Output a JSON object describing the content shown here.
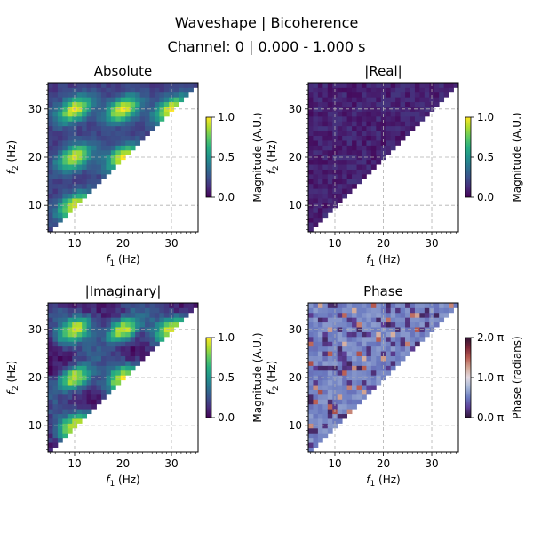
{
  "figure": {
    "suptitle_line1": "Waveshape | Bicoherence",
    "suptitle_line2": "Channel: 0 | 0.000 - 1.000 s"
  },
  "chart_data": [
    {
      "type": "heatmap",
      "title": "Absolute",
      "xlabel_var": "f",
      "xlabel_sub": "1",
      "xlabel_unit": " (Hz)",
      "ylabel_var": "f",
      "ylabel_sub": "2",
      "ylabel_unit": " (Hz)",
      "xlim": [
        4.5,
        35.5
      ],
      "ylim": [
        4.5,
        35.5
      ],
      "xticks": [
        10,
        20,
        30
      ],
      "yticks": [
        10,
        20,
        30
      ],
      "grid": true,
      "mask": "f2 >= f1",
      "pattern": "periodic blobs of high bicoherence near (10,10),(10,20),(20,20),(10,30),(20,30),(30,30)",
      "colormap": "viridis",
      "clim": [
        0,
        1
      ],
      "colorbar_ticks": [
        "0.0",
        "0.5",
        "1.0"
      ],
      "colorbar_label": "Magnitude (A.U.)"
    },
    {
      "type": "heatmap",
      "title": "|Real|",
      "xlabel_var": "f",
      "xlabel_sub": "1",
      "xlabel_unit": " (Hz)",
      "ylabel_var": "f",
      "ylabel_sub": "2",
      "ylabel_unit": " (Hz)",
      "xlim": [
        4.5,
        35.5
      ],
      "ylim": [
        4.5,
        35.5
      ],
      "xticks": [
        10,
        20,
        30
      ],
      "yticks": [
        10,
        20,
        30
      ],
      "grid": true,
      "mask": "f2 >= f1",
      "pattern": "near-zero values throughout",
      "colormap": "viridis",
      "clim": [
        0,
        1
      ],
      "colorbar_ticks": [
        "0.0",
        "0.5",
        "1.0"
      ],
      "colorbar_label": "Magnitude (A.U.)"
    },
    {
      "type": "heatmap",
      "title": "|Imaginary|",
      "xlabel_var": "f",
      "xlabel_sub": "1",
      "xlabel_unit": " (Hz)",
      "ylabel_var": "f",
      "ylabel_sub": "2",
      "ylabel_unit": " (Hz)",
      "xlim": [
        4.5,
        35.5
      ],
      "ylim": [
        4.5,
        35.5
      ],
      "xticks": [
        10,
        20,
        30
      ],
      "yticks": [
        10,
        20,
        30
      ],
      "grid": true,
      "mask": "f2 >= f1",
      "pattern": "same blobs as Absolute with darker gaps",
      "colormap": "viridis",
      "clim": [
        0,
        1
      ],
      "colorbar_ticks": [
        "0.0",
        "0.5",
        "1.0"
      ],
      "colorbar_label": "Magnitude (A.U.)"
    },
    {
      "type": "heatmap",
      "title": "Phase",
      "xlabel_var": "f",
      "xlabel_sub": "1",
      "xlabel_unit": " (Hz)",
      "ylabel_var": "f",
      "ylabel_sub": "2",
      "ylabel_unit": " (Hz)",
      "xlim": [
        4.5,
        35.5
      ],
      "ylim": [
        4.5,
        35.5
      ],
      "xticks": [
        10,
        20,
        30
      ],
      "yticks": [
        10,
        20,
        30
      ],
      "grid": true,
      "mask": "f2 >= f1",
      "pattern": "mostly ~0.5 pi (light blue/purple) with dark bands near 0 pi and a few red cells",
      "colormap": "twilight_shifted",
      "clim": [
        0,
        2
      ],
      "colorbar_ticks": [
        "0.0 π",
        "1.0 π",
        "2.0 π"
      ],
      "colorbar_label": "Phase (radians)"
    }
  ]
}
